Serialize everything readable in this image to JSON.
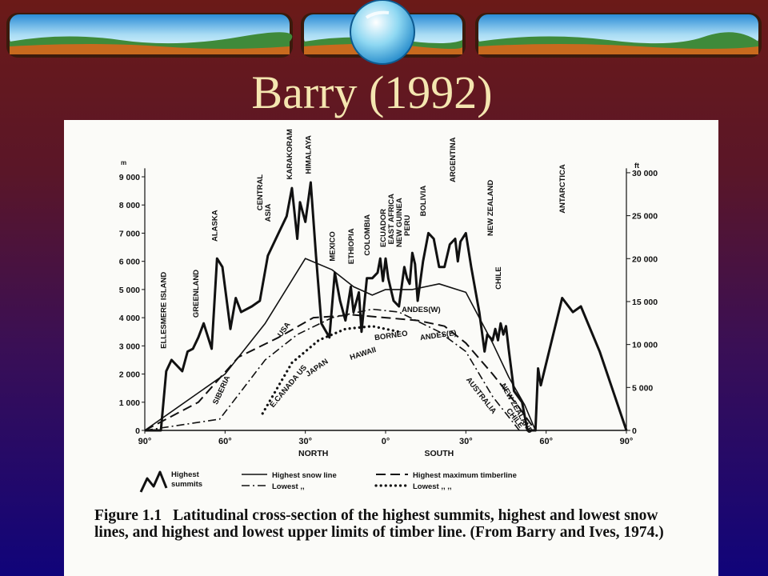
{
  "slide": {
    "title": "Barry (1992)",
    "colors": {
      "title": "#f4e6b0",
      "bg_top": "#6b1a18",
      "bg_bottom": "#10047a"
    }
  },
  "figure": {
    "caption_number": "Figure 1.1",
    "caption_text": "Latitudinal cross-section of the highest summits, highest and lowest snow lines, and highest and lowest upper limits of timber line. (From Barry and Ives, 1974.)"
  },
  "chart_data": {
    "type": "line",
    "x_unit": "latitude degrees (90N = -90, 90S = 90)",
    "xlim": [
      -90,
      90
    ],
    "ylim": [
      0,
      9500
    ],
    "y_left_unit": "m",
    "y_left_ticks": [
      {
        "v": 0,
        "label": "0"
      },
      {
        "v": 1000,
        "label": "1 000"
      },
      {
        "v": 2000,
        "label": "2 000"
      },
      {
        "v": 3000,
        "label": "3 000"
      },
      {
        "v": 4000,
        "label": "4 000"
      },
      {
        "v": 5000,
        "label": "5 000"
      },
      {
        "v": 6000,
        "label": "6 000"
      },
      {
        "v": 7000,
        "label": "7 000"
      },
      {
        "v": 8000,
        "label": "8 000"
      },
      {
        "v": 9000,
        "label": "9 000"
      }
    ],
    "y_right_unit": "ft",
    "y_right_ticks": [
      {
        "v": 0,
        "label": "0"
      },
      {
        "v": 1524,
        "label": "5 000"
      },
      {
        "v": 3048,
        "label": "10 000"
      },
      {
        "v": 4572,
        "label": "15 000"
      },
      {
        "v": 6096,
        "label": "20 000"
      },
      {
        "v": 7620,
        "label": "25 000"
      },
      {
        "v": 9144,
        "label": "30 000"
      }
    ],
    "x_ticks": [
      {
        "v": -90,
        "label": "90°"
      },
      {
        "v": -60,
        "label": "60°"
      },
      {
        "v": -30,
        "label": "30°"
      },
      {
        "v": 0,
        "label": "0°"
      },
      {
        "v": 30,
        "label": "30°"
      },
      {
        "v": 60,
        "label": "60°"
      },
      {
        "v": 90,
        "label": "90°"
      }
    ],
    "hemisphere_labels": [
      {
        "x": -27,
        "label": "NORTH"
      },
      {
        "x": 20,
        "label": "SOUTH"
      }
    ],
    "series": [
      {
        "key": "summits",
        "style": "thick",
        "points": [
          [
            -90,
            0
          ],
          [
            -84,
            0
          ],
          [
            -82,
            2100
          ],
          [
            -80,
            2500
          ],
          [
            -76,
            2100
          ],
          [
            -74,
            2800
          ],
          [
            -72,
            2900
          ],
          [
            -70,
            3300
          ],
          [
            -68,
            3800
          ],
          [
            -65,
            2900
          ],
          [
            -63,
            6100
          ],
          [
            -61,
            5800
          ],
          [
            -58,
            3600
          ],
          [
            -56,
            4700
          ],
          [
            -54,
            4200
          ],
          [
            -50,
            4400
          ],
          [
            -47,
            4600
          ],
          [
            -44,
            6200
          ],
          [
            -40,
            7000
          ],
          [
            -37,
            7600
          ],
          [
            -35,
            8600
          ],
          [
            -33,
            6800
          ],
          [
            -32,
            8100
          ],
          [
            -30,
            7400
          ],
          [
            -28,
            8800
          ],
          [
            -26,
            6200
          ],
          [
            -24,
            3800
          ],
          [
            -21,
            3300
          ],
          [
            -19,
            5600
          ],
          [
            -17,
            4600
          ],
          [
            -15,
            3900
          ],
          [
            -13,
            5100
          ],
          [
            -12,
            4200
          ],
          [
            -10,
            4900
          ],
          [
            -9,
            3500
          ],
          [
            -7,
            5400
          ],
          [
            -5,
            5400
          ],
          [
            -3,
            5600
          ],
          [
            -2,
            6100
          ],
          [
            -1,
            5300
          ],
          [
            0,
            6100
          ],
          [
            1,
            5400
          ],
          [
            3,
            4600
          ],
          [
            5,
            4400
          ],
          [
            7,
            5800
          ],
          [
            8,
            5400
          ],
          [
            9,
            5200
          ],
          [
            10,
            6300
          ],
          [
            11,
            5900
          ],
          [
            12,
            4600
          ],
          [
            14,
            6000
          ],
          [
            16,
            7000
          ],
          [
            18,
            6800
          ],
          [
            20,
            5800
          ],
          [
            22,
            5800
          ],
          [
            24,
            6600
          ],
          [
            26,
            6800
          ],
          [
            27,
            6000
          ],
          [
            28,
            6700
          ],
          [
            30,
            7000
          ],
          [
            32,
            5800
          ],
          [
            35,
            4200
          ],
          [
            37,
            2800
          ],
          [
            38,
            3400
          ],
          [
            40,
            3200
          ],
          [
            41,
            3600
          ],
          [
            42,
            3200
          ],
          [
            43,
            3800
          ],
          [
            44,
            3400
          ],
          [
            45,
            3700
          ],
          [
            46,
            2900
          ],
          [
            48,
            1400
          ],
          [
            51,
            1000
          ],
          [
            53,
            0
          ],
          [
            56,
            0
          ],
          [
            57,
            2200
          ],
          [
            58,
            1600
          ],
          [
            66,
            4700
          ],
          [
            70,
            4200
          ],
          [
            73,
            4400
          ],
          [
            80,
            2800
          ],
          [
            90,
            0
          ]
        ]
      },
      {
        "key": "snow_high",
        "style": "solid",
        "points": [
          [
            -90,
            0
          ],
          [
            -60,
            2000
          ],
          [
            -45,
            3800
          ],
          [
            -30,
            6100
          ],
          [
            -20,
            5700
          ],
          [
            -12,
            5100
          ],
          [
            -5,
            4800
          ],
          [
            0,
            5000
          ],
          [
            10,
            5000
          ],
          [
            20,
            5200
          ],
          [
            30,
            4900
          ],
          [
            40,
            3100
          ],
          [
            46,
            1900
          ],
          [
            52,
            900
          ],
          [
            56,
            0
          ]
        ]
      },
      {
        "key": "snow_low",
        "style": "dashdot",
        "points": [
          [
            -90,
            0
          ],
          [
            -62,
            400
          ],
          [
            -45,
            2500
          ],
          [
            -33,
            3400
          ],
          [
            -20,
            4000
          ],
          [
            -5,
            4300
          ],
          [
            5,
            4200
          ],
          [
            20,
            3500
          ],
          [
            30,
            2800
          ],
          [
            40,
            1200
          ],
          [
            45,
            600
          ],
          [
            50,
            0
          ]
        ]
      },
      {
        "key": "timber_high",
        "style": "dashed",
        "points": [
          [
            -90,
            0
          ],
          [
            -70,
            1000
          ],
          [
            -55,
            2600
          ],
          [
            -40,
            3300
          ],
          [
            -27,
            4000
          ],
          [
            -12,
            4100
          ],
          [
            0,
            4000
          ],
          [
            12,
            3900
          ],
          [
            22,
            3700
          ],
          [
            30,
            3100
          ],
          [
            40,
            2000
          ],
          [
            50,
            800
          ],
          [
            56,
            0
          ]
        ]
      },
      {
        "key": "timber_low",
        "style": "dotted",
        "points": [
          [
            -46,
            600
          ],
          [
            -35,
            2400
          ],
          [
            -25,
            3200
          ],
          [
            -15,
            3600
          ],
          [
            -5,
            3700
          ],
          [
            5,
            3500
          ]
        ]
      }
    ],
    "annotations": [
      {
        "text": "ELLESMERE ISLAND",
        "x": -82,
        "y": 2900,
        "rot": -90
      },
      {
        "text": "GREENLAND",
        "x": -70,
        "y": 4000,
        "rot": -90
      },
      {
        "text": "ALASKA",
        "x": -63,
        "y": 6700,
        "rot": -90
      },
      {
        "text": "CENTRAL",
        "x": -46,
        "y": 7800,
        "rot": -90
      },
      {
        "text": "ASIA",
        "x": -43,
        "y": 7400,
        "rot": -90
      },
      {
        "text": "KARAKORAM",
        "x": -35,
        "y": 8900,
        "rot": -90
      },
      {
        "text": "HIMALAYA",
        "x": -28,
        "y": 9100,
        "rot": -90
      },
      {
        "text": "MEXICO",
        "x": -19,
        "y": 6000,
        "rot": -90
      },
      {
        "text": "ETHIOPIA",
        "x": -12,
        "y": 5900,
        "rot": -90
      },
      {
        "text": "COLOMBIA",
        "x": -6,
        "y": 6200,
        "rot": -90
      },
      {
        "text": "ECUADOR",
        "x": 0,
        "y": 6500,
        "rot": -90
      },
      {
        "text": "EAST AFRICA",
        "x": 3,
        "y": 6600,
        "rot": -90
      },
      {
        "text": "NEW GUINEA",
        "x": 6,
        "y": 6500,
        "rot": -90
      },
      {
        "text": "PERU",
        "x": 9,
        "y": 6900,
        "rot": -90
      },
      {
        "text": "BOLIVIA",
        "x": 15,
        "y": 7600,
        "rot": -90
      },
      {
        "text": "ARGENTINA",
        "x": 26,
        "y": 8800,
        "rot": -90
      },
      {
        "text": "NEW ZEALAND",
        "x": 40,
        "y": 6900,
        "rot": -90
      },
      {
        "text": "CHILE",
        "x": 43,
        "y": 5000,
        "rot": -90
      },
      {
        "text": "ANTARCTICA",
        "x": 67,
        "y": 7700,
        "rot": -90
      },
      {
        "text": "USA",
        "x": -39,
        "y": 3300,
        "rot": -55
      },
      {
        "text": "SIBERIA",
        "x": -63,
        "y": 900,
        "rot": -65
      },
      {
        "text": "E.CANADA US",
        "x": -42,
        "y": 800,
        "rot": -50
      },
      {
        "text": "JAPAN",
        "x": -29,
        "y": 1900,
        "rot": -35
      },
      {
        "text": "HAWAII",
        "x": -13,
        "y": 2500,
        "rot": -18
      },
      {
        "text": "BORNEO",
        "x": -4,
        "y": 3200,
        "rot": -8
      },
      {
        "text": "ANDES(W)",
        "x": 6,
        "y": 4200,
        "rot": 0
      },
      {
        "text": "ANDES(E)",
        "x": 13,
        "y": 3200,
        "rot": -8
      },
      {
        "text": "AUSTRALIA",
        "x": 30,
        "y": 1800,
        "rot": 52
      },
      {
        "text": "NEW ZEALAND",
        "x": 43,
        "y": 1600,
        "rot": 60
      },
      {
        "text": "CHILE",
        "x": 45,
        "y": 700,
        "rot": 52
      }
    ],
    "legend": [
      {
        "key": "summits",
        "label": "Highest summits"
      },
      {
        "key": "snow_high",
        "label": "Highest snow line"
      },
      {
        "key": "snow_low",
        "label": "Lowest    ,,"
      },
      {
        "key": "timber_high",
        "label": "Highest maximum timberline"
      },
      {
        "key": "timber_low",
        "label": "Lowest    ,,    ,,"
      }
    ]
  }
}
